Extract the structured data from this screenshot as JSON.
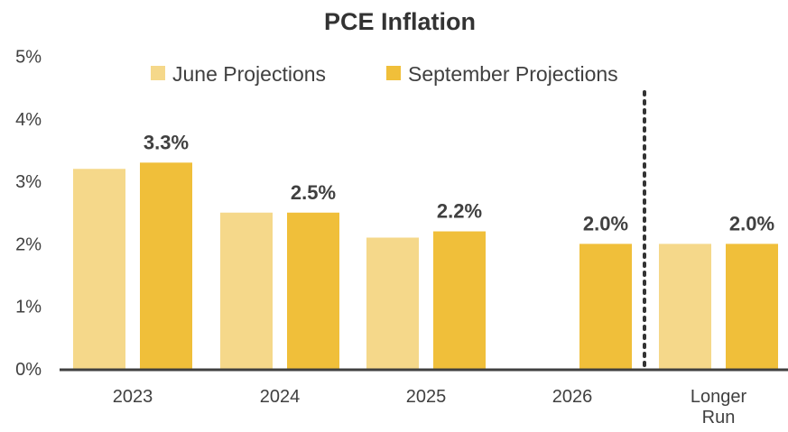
{
  "chart_data": {
    "type": "bar",
    "title": "PCE Inflation",
    "categories": [
      [
        "2023"
      ],
      [
        "2024"
      ],
      [
        "2025"
      ],
      [
        "2026"
      ],
      [
        "Longer",
        "Run"
      ]
    ],
    "series": [
      {
        "name": "June Projections",
        "color": "#f5d88a",
        "values": [
          3.2,
          2.5,
          2.1,
          null,
          2.0
        ]
      },
      {
        "name": "September Projections",
        "color": "#f0bf3a",
        "values": [
          3.3,
          2.5,
          2.2,
          2.0,
          2.0
        ]
      }
    ],
    "data_labels": [
      "3.3%",
      "2.5%",
      "2.2%",
      "2.0%",
      "2.0%"
    ],
    "y_ticks": [
      "0%",
      "1%",
      "2%",
      "3%",
      "4%",
      "5%"
    ],
    "ylim": [
      0,
      5
    ],
    "xlabel": "",
    "ylabel": "",
    "grid": false,
    "legend_position": "top",
    "separator": "dotted vertical line between 2026 and Longer Run"
  }
}
